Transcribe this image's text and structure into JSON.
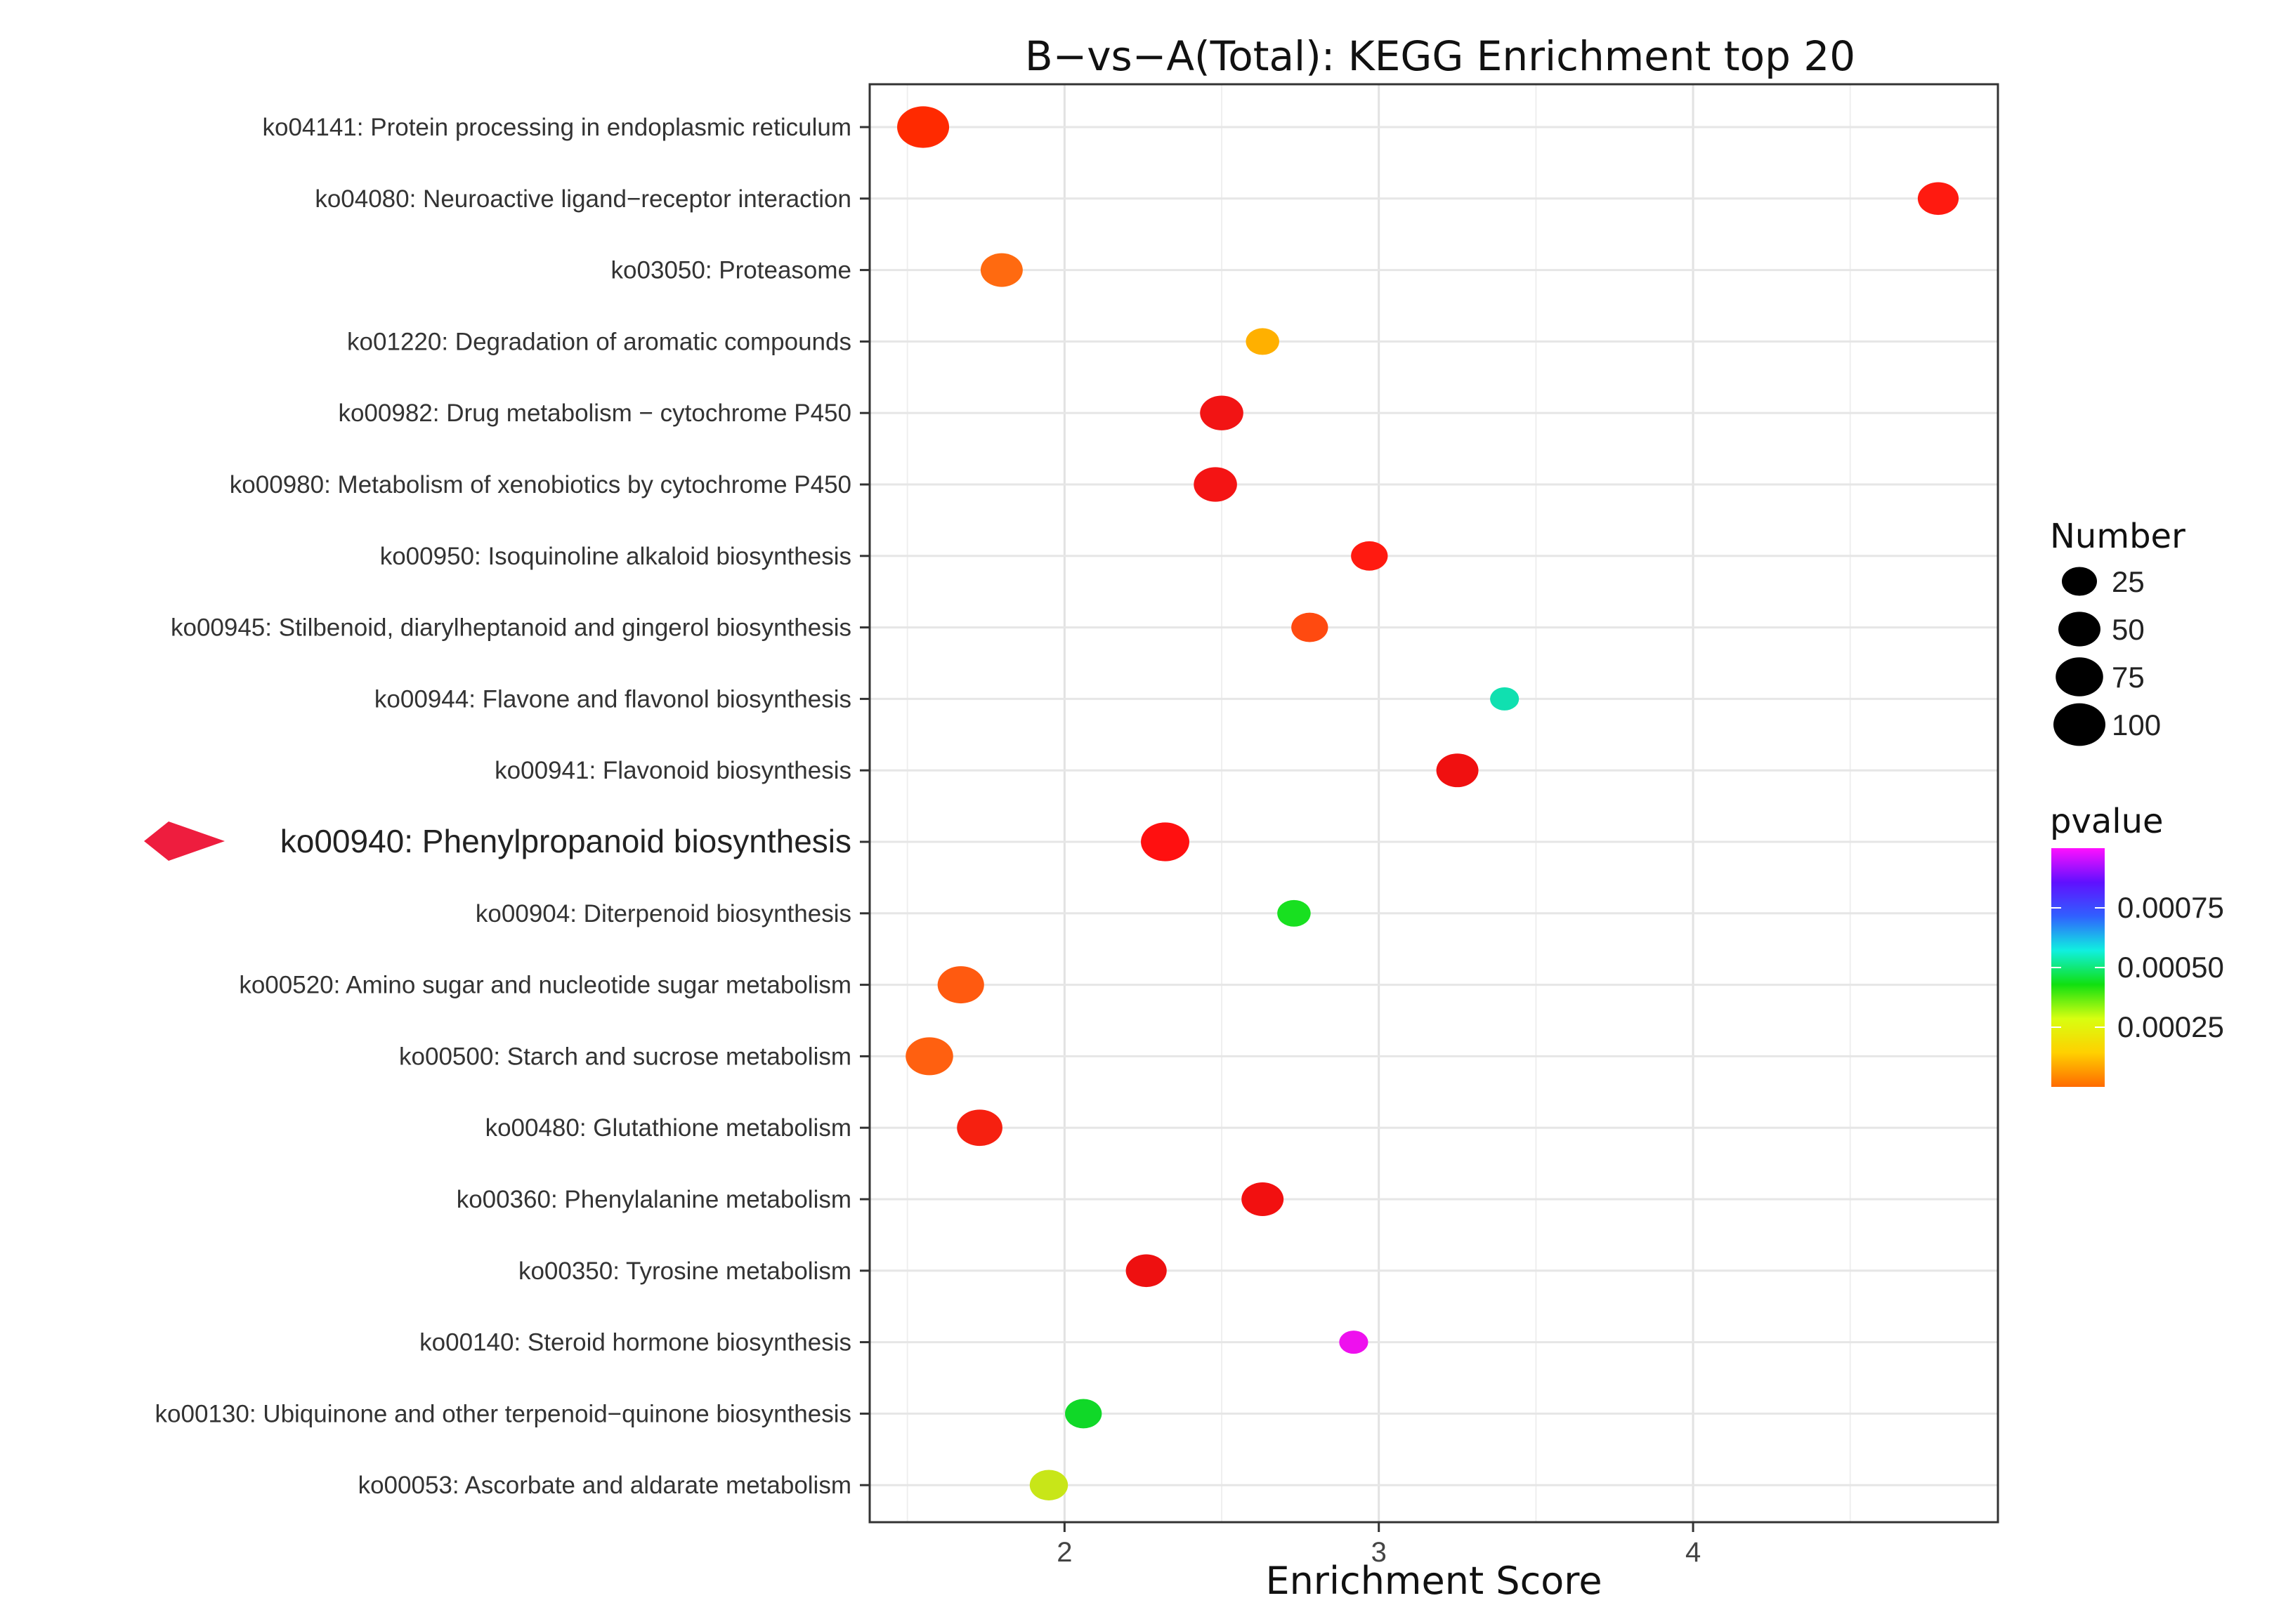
{
  "chart_data": {
    "type": "scatter",
    "title": "B−vs−A(Total): KEGG Enrichment top 20",
    "xlabel": "Enrichment Score",
    "ylabel": "",
    "xlim": [
      1.38,
      4.97
    ],
    "x_ticks": [
      2,
      3,
      4
    ],
    "x_tick_labels": [
      "2",
      "3",
      "4"
    ],
    "grid": true,
    "highlighted_category": "ko00940: Phenylpropanoid biosynthesis",
    "highlight_marker": "arrow",
    "highlight_color": "#ee1d3e",
    "categories": [
      "ko04141: Protein processing in endoplasmic reticulum",
      "ko04080: Neuroactive ligand−receptor interaction",
      "ko03050: Proteasome",
      "ko01220: Degradation of aromatic compounds",
      "ko00982: Drug metabolism − cytochrome P450",
      "ko00980: Metabolism of xenobiotics by cytochrome P450",
      "ko00950: Isoquinoline alkaloid biosynthesis",
      "ko00945: Stilbenoid, diarylheptanoid and gingerol biosynthesis",
      "ko00944: Flavone and flavonol biosynthesis",
      "ko00941: Flavonoid biosynthesis",
      "ko00940: Phenylpropanoid biosynthesis",
      "ko00904: Diterpenoid biosynthesis",
      "ko00520: Amino sugar and nucleotide sugar metabolism",
      "ko00500: Starch and sucrose metabolism",
      "ko00480: Glutathione metabolism",
      "ko00360: Phenylalanine metabolism",
      "ko00350: Tyrosine metabolism",
      "ko00140: Steroid hormone biosynthesis",
      "ko00130: Ubiquinone and other terpenoid−quinone biosynthesis",
      "ko00053: Ascorbate and aldarate metabolism"
    ],
    "points": [
      {
        "x": 1.55,
        "number": 100,
        "pvalue": 1e-05,
        "color": "#ff2a00"
      },
      {
        "x": 4.78,
        "number": 45,
        "pvalue": 1e-05,
        "color": "#ff1a10"
      },
      {
        "x": 1.8,
        "number": 50,
        "pvalue": 8e-05,
        "color": "#ff6a10"
      },
      {
        "x": 2.63,
        "number": 20,
        "pvalue": 0.00016,
        "color": "#ffb000"
      },
      {
        "x": 2.5,
        "number": 55,
        "pvalue": 2e-05,
        "color": "#f21414"
      },
      {
        "x": 2.48,
        "number": 55,
        "pvalue": 2e-05,
        "color": "#f41414"
      },
      {
        "x": 2.97,
        "number": 30,
        "pvalue": 1e-05,
        "color": "#ff1a10"
      },
      {
        "x": 2.78,
        "number": 30,
        "pvalue": 4e-05,
        "color": "#ff4a10"
      },
      {
        "x": 3.4,
        "number": 10,
        "pvalue": 0.0005,
        "color": "#10e0b0"
      },
      {
        "x": 3.25,
        "number": 50,
        "pvalue": 1e-05,
        "color": "#f01010"
      },
      {
        "x": 2.32,
        "number": 80,
        "pvalue": 1e-05,
        "color": "#ff1010"
      },
      {
        "x": 2.73,
        "number": 20,
        "pvalue": 0.00035,
        "color": "#18e020"
      },
      {
        "x": 1.67,
        "number": 70,
        "pvalue": 6e-05,
        "color": "#ff5a10"
      },
      {
        "x": 1.57,
        "number": 75,
        "pvalue": 7e-05,
        "color": "#ff6010"
      },
      {
        "x": 1.73,
        "number": 65,
        "pvalue": 2e-05,
        "color": "#f62010"
      },
      {
        "x": 2.63,
        "number": 50,
        "pvalue": 1e-05,
        "color": "#f21010"
      },
      {
        "x": 2.26,
        "number": 45,
        "pvalue": 1e-05,
        "color": "#ee1010"
      },
      {
        "x": 2.92,
        "number": 10,
        "pvalue": 0.00095,
        "color": "#ee10ee"
      },
      {
        "x": 2.06,
        "number": 30,
        "pvalue": 0.0003,
        "color": "#10d828"
      },
      {
        "x": 1.95,
        "number": 35,
        "pvalue": 0.00022,
        "color": "#c8e618"
      }
    ],
    "legend": {
      "size_title": "Number",
      "size_values": [
        25,
        50,
        75,
        100
      ],
      "size_labels": [
        "25",
        "50",
        "75",
        "100"
      ],
      "color_title": "pvalue",
      "color_range": [
        0.0,
        0.001
      ],
      "color_ticks": [
        0.00075,
        0.0005,
        0.00025
      ],
      "color_tick_labels": [
        "0.00075",
        "0.00050",
        "0.00025"
      ],
      "color_stops": [
        "#ff6a00",
        "#ffd000",
        "#d8ff10",
        "#10e010",
        "#10f0e0",
        "#3060ff",
        "#6010ff",
        "#ff10ff"
      ],
      "placement": "right"
    }
  }
}
